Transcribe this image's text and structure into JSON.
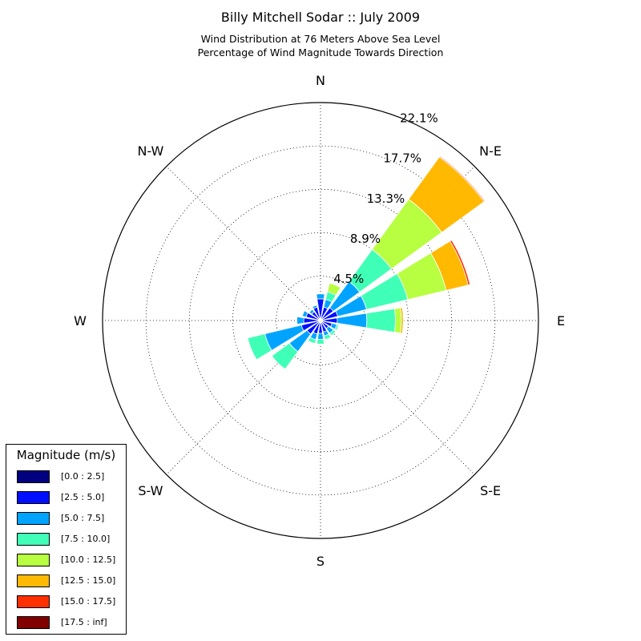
{
  "chart_data": {
    "type": "polar-bar",
    "title": "Billy Mitchell Sodar :: July 2009",
    "subtitle_lines": [
      "Wind Distribution at 76 Meters Above Sea Level",
      "Percentage of Wind Magnitude Towards Direction"
    ],
    "directions": [
      "N",
      "NNE",
      "NE",
      "ENE",
      "E",
      "ESE",
      "SE",
      "SSE",
      "S",
      "SSW",
      "SW",
      "WSW",
      "W",
      "WNW",
      "NW",
      "NNW"
    ],
    "direction_labels": [
      "N",
      "N-E",
      "E",
      "S-E",
      "S",
      "S-W",
      "W",
      "N-W"
    ],
    "radial_ticks": [
      "4.5%",
      "8.9%",
      "13.3%",
      "17.7%",
      "22.1%"
    ],
    "radial_max": 22.1,
    "grid": true,
    "legend": {
      "title": "Magnitude (m/s)",
      "placement": "lower-left"
    },
    "series": [
      {
        "name": "[0.0 : 2.5]",
        "color": "#000080",
        "values": [
          0.2,
          0.2,
          0.2,
          0.2,
          0.2,
          0.2,
          0.2,
          0.2,
          0.2,
          0.2,
          0.2,
          0.2,
          0.2,
          0.2,
          0.2,
          0.2
        ]
      },
      {
        "name": "[2.5 : 5.0]",
        "color": "#0010ff",
        "values": [
          2.0,
          1.2,
          1.4,
          1.6,
          1.5,
          1.0,
          0.8,
          1.0,
          1.1,
          1.2,
          1.5,
          1.8,
          1.5,
          1.3,
          0.9,
          1.2
        ]
      },
      {
        "name": "[5.0 : 7.5]",
        "color": "#00a4ff",
        "values": [
          0.5,
          0.8,
          3.3,
          3.0,
          3.0,
          0.5,
          0.6,
          0.4,
          0.6,
          0.6,
          2.2,
          3.8,
          0.7,
          0.4,
          0.3,
          0.2
        ]
      },
      {
        "name": "[7.5 : 10.0]",
        "color": "#40ffb7",
        "values": [
          0.0,
          0.8,
          4.0,
          4.3,
          2.9,
          0.2,
          0.3,
          0.4,
          0.5,
          0.4,
          2.2,
          1.8,
          0.0,
          0.0,
          0.0,
          0.0
        ]
      },
      {
        "name": "[10.0 : 12.5]",
        "color": "#b7ff40",
        "values": [
          0.0,
          0.9,
          6.3,
          4.0,
          0.6,
          0.0,
          0.0,
          0.0,
          0.0,
          0.0,
          0.0,
          0.0,
          0.0,
          0.0,
          0.0,
          0.0
        ]
      },
      {
        "name": "[12.5 : 15.0]",
        "color": "#ffb900",
        "values": [
          0.0,
          0.0,
          5.3,
          2.3,
          0.2,
          0.0,
          0.0,
          0.0,
          0.0,
          0.0,
          0.0,
          0.0,
          0.0,
          0.0,
          0.0,
          0.0
        ]
      },
      {
        "name": "[15.0 : 17.5]",
        "color": "#ff3000",
        "values": [
          0.0,
          0.0,
          0.1,
          0.2,
          0.05,
          0.0,
          0.0,
          0.0,
          0.0,
          0.0,
          0.0,
          0.0,
          0.0,
          0.0,
          0.0,
          0.0
        ]
      },
      {
        "name": "[17.5 : inf]",
        "color": "#800000",
        "values": [
          0.0,
          0.0,
          0.0,
          0.05,
          0.0,
          0.0,
          0.0,
          0.0,
          0.0,
          0.0,
          0.0,
          0.0,
          0.0,
          0.0,
          0.0,
          0.0
        ]
      }
    ]
  }
}
